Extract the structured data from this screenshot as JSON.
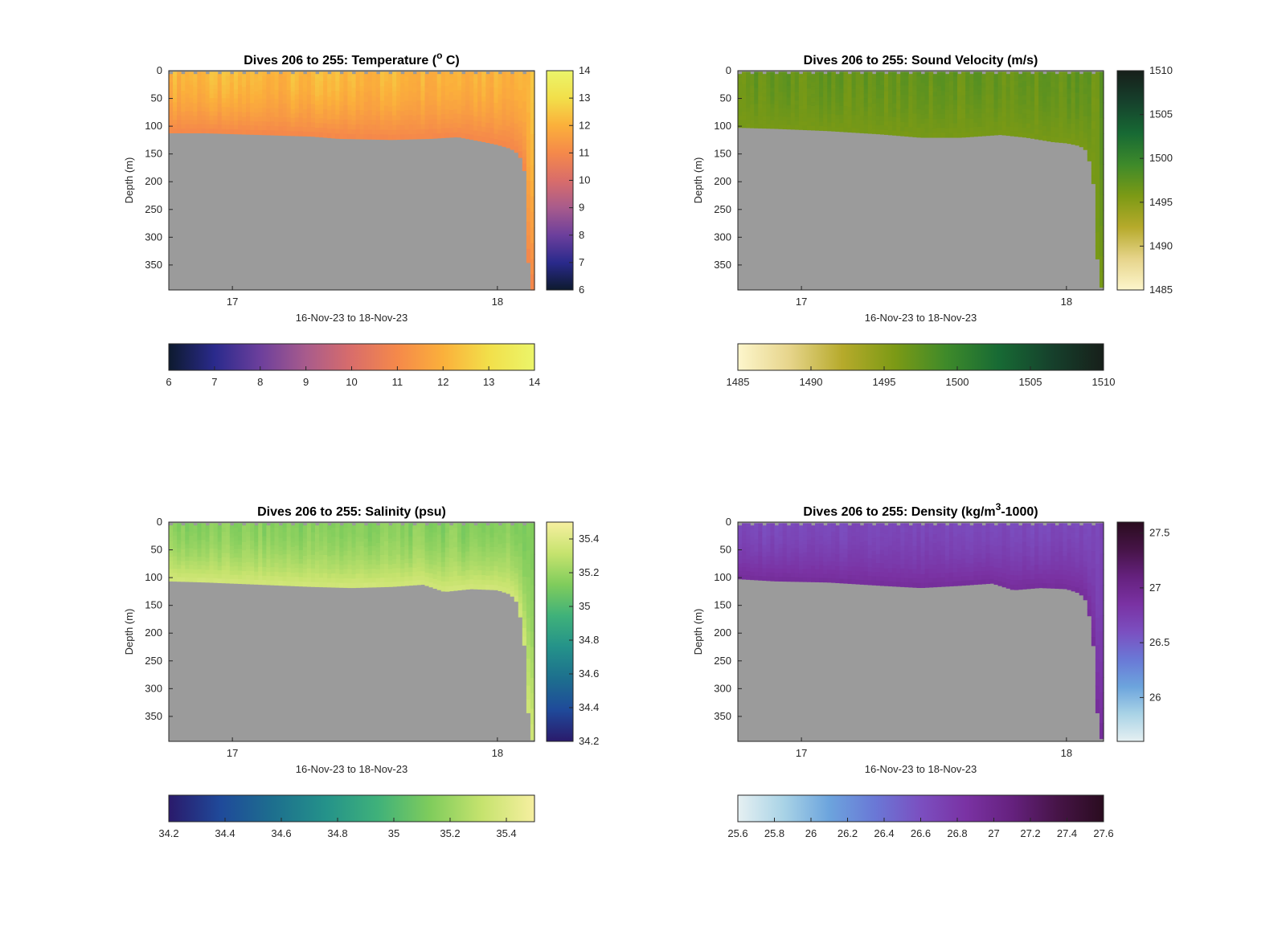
{
  "chart_data": [
    {
      "type": "heatmap",
      "title": "Dives 206 to 255: Temperature (",
      "title_degree": "o",
      "title_end": " C)",
      "xlabel": "16-Nov-23 to 18-Nov-23",
      "ylabel": "Depth (m)",
      "x_ticks": [
        "17",
        "18"
      ],
      "x_tick_values": [
        17,
        18
      ],
      "xlim": [
        16.76,
        18.14
      ],
      "ylim": [
        0,
        395
      ],
      "y_reversed": true,
      "y_ticks": [
        "0",
        "50",
        "100",
        "150",
        "200",
        "250",
        "300",
        "350"
      ],
      "y_tick_values": [
        0,
        50,
        100,
        150,
        200,
        250,
        300,
        350
      ],
      "colorbar": {
        "limits": [
          6,
          14
        ],
        "ticks": [
          "6",
          "7",
          "8",
          "9",
          "10",
          "11",
          "12",
          "13",
          "14"
        ],
        "tick_values": [
          6,
          7,
          8,
          9,
          10,
          11,
          12,
          13,
          14
        ],
        "colors": [
          "#0d1a2e",
          "#2a2a8c",
          "#6c3f9c",
          "#a85b8c",
          "#d96d6a",
          "#f5894a",
          "#fbb03b",
          "#f2df4a",
          "#ebf56a"
        ]
      },
      "surface_value_range": [
        11.8,
        12.5
      ],
      "bottom_value": 11.0,
      "bottom_depth_profile": [
        [
          16.76,
          112
        ],
        [
          16.9,
          112
        ],
        [
          17.1,
          115
        ],
        [
          17.3,
          118
        ],
        [
          17.4,
          122
        ],
        [
          17.6,
          124
        ],
        [
          17.75,
          122
        ],
        [
          17.85,
          119
        ],
        [
          17.95,
          128
        ],
        [
          18.0,
          133
        ],
        [
          18.05,
          140
        ],
        [
          18.08,
          150
        ],
        [
          18.1,
          170
        ],
        [
          18.11,
          230
        ],
        [
          18.12,
          395
        ],
        [
          18.14,
          395
        ]
      ],
      "no_data_color": "#9b9b9b"
    },
    {
      "type": "heatmap",
      "title": "Dives 206 to 255: Sound Velocity (m/s)",
      "xlabel": "16-Nov-23 to 18-Nov-23",
      "ylabel": "Depth (m)",
      "x_ticks": [
        "17",
        "18"
      ],
      "x_tick_values": [
        17,
        18
      ],
      "xlim": [
        16.76,
        18.14
      ],
      "ylim": [
        0,
        395
      ],
      "y_reversed": true,
      "y_ticks": [
        "0",
        "50",
        "100",
        "150",
        "200",
        "250",
        "300",
        "350"
      ],
      "y_tick_values": [
        0,
        50,
        100,
        150,
        200,
        250,
        300,
        350
      ],
      "colorbar": {
        "limits": [
          1485,
          1510
        ],
        "ticks": [
          "1485",
          "1490",
          "1495",
          "1500",
          "1505",
          "1510"
        ],
        "tick_values": [
          1485,
          1490,
          1495,
          1500,
          1505,
          1510
        ],
        "colors": [
          "#fdf6cc",
          "#e6d48a",
          "#b6aa2b",
          "#7c9a15",
          "#3e8a2a",
          "#176a34",
          "#16412c",
          "#171f1a"
        ]
      },
      "surface_value_range": [
        1496,
        1498
      ],
      "bottom_value": 1496,
      "bottom_depth_profile": [
        [
          16.76,
          102
        ],
        [
          16.9,
          104
        ],
        [
          17.1,
          108
        ],
        [
          17.3,
          114
        ],
        [
          17.45,
          120
        ],
        [
          17.6,
          120
        ],
        [
          17.75,
          115
        ],
        [
          17.85,
          120
        ],
        [
          17.95,
          128
        ],
        [
          18.0,
          130
        ],
        [
          18.05,
          135
        ],
        [
          18.08,
          145
        ],
        [
          18.1,
          200
        ],
        [
          18.11,
          220
        ],
        [
          18.12,
          390
        ],
        [
          18.14,
          390
        ]
      ],
      "no_data_color": "#9b9b9b"
    },
    {
      "type": "heatmap",
      "title": "Dives 206 to 255: Salinity (psu)",
      "xlabel": "16-Nov-23 to 18-Nov-23",
      "ylabel": "Depth (m)",
      "x_ticks": [
        "17",
        "18"
      ],
      "x_tick_values": [
        17,
        18
      ],
      "xlim": [
        16.76,
        18.14
      ],
      "ylim": [
        0,
        395
      ],
      "y_reversed": true,
      "y_ticks": [
        "0",
        "50",
        "100",
        "150",
        "200",
        "250",
        "300",
        "350"
      ],
      "y_tick_values": [
        0,
        50,
        100,
        150,
        200,
        250,
        300,
        350
      ],
      "colorbar": {
        "limits": [
          34.2,
          35.5
        ],
        "ticks": [
          "34.2",
          "34.4",
          "34.6",
          "34.8",
          "35",
          "35.2",
          "35.4"
        ],
        "tick_values": [
          34.2,
          34.4,
          34.6,
          34.8,
          35.0,
          35.2,
          35.4
        ],
        "colors": [
          "#2a1a6b",
          "#1f4a9a",
          "#1d6f8e",
          "#24928a",
          "#3fb17a",
          "#7fcc5c",
          "#c6e36e",
          "#f6efa0"
        ]
      },
      "surface_value_range": [
        35.1,
        35.2
      ],
      "bottom_value": 35.35,
      "bottom_depth_profile": [
        [
          16.76,
          106
        ],
        [
          16.9,
          108
        ],
        [
          17.1,
          112
        ],
        [
          17.3,
          116
        ],
        [
          17.45,
          118
        ],
        [
          17.6,
          116
        ],
        [
          17.72,
          112
        ],
        [
          17.8,
          125
        ],
        [
          17.9,
          120
        ],
        [
          18.0,
          122
        ],
        [
          18.05,
          130
        ],
        [
          18.08,
          148
        ],
        [
          18.1,
          220
        ],
        [
          18.11,
          230
        ],
        [
          18.12,
          392
        ],
        [
          18.14,
          392
        ]
      ],
      "no_data_color": "#9b9b9b"
    },
    {
      "type": "heatmap",
      "title": "Dives 206 to 255: Density (kg/m",
      "title_sup": "3",
      "title_end": "-1000)",
      "xlabel": "16-Nov-23 to 18-Nov-23",
      "ylabel": "Depth (m)",
      "x_ticks": [
        "17",
        "18"
      ],
      "x_tick_values": [
        17,
        18
      ],
      "xlim": [
        16.76,
        18.14
      ],
      "ylim": [
        0,
        395
      ],
      "y_reversed": true,
      "y_ticks": [
        "0",
        "50",
        "100",
        "150",
        "200",
        "250",
        "300",
        "350"
      ],
      "y_tick_values": [
        0,
        50,
        100,
        150,
        200,
        250,
        300,
        350
      ],
      "colorbar": {
        "limits": [
          25.6,
          27.6
        ],
        "ticks": [
          "25.6",
          "25.8",
          "26",
          "26.2",
          "26.4",
          "26.6",
          "26.8",
          "27",
          "27.2",
          "27.4",
          "27.6"
        ],
        "tick_values": [
          25.6,
          25.8,
          26.0,
          26.2,
          26.4,
          26.6,
          26.8,
          27.0,
          27.2,
          27.4,
          27.6
        ],
        "side_ticks": [
          "26",
          "26.5",
          "27",
          "27.5"
        ],
        "side_tick_values": [
          26.0,
          26.5,
          27.0,
          27.5
        ],
        "colors": [
          "#e6f0f2",
          "#a9d3e6",
          "#6ca4dd",
          "#6a78d6",
          "#7b4fc0",
          "#7a32a3",
          "#65217e",
          "#461447",
          "#2a0c1f"
        ]
      },
      "surface_value_range": [
        26.6,
        26.7
      ],
      "bottom_value": 26.9,
      "bottom_depth_profile": [
        [
          16.76,
          102
        ],
        [
          16.9,
          106
        ],
        [
          17.1,
          108
        ],
        [
          17.3,
          114
        ],
        [
          17.45,
          118
        ],
        [
          17.6,
          114
        ],
        [
          17.72,
          110
        ],
        [
          17.8,
          122
        ],
        [
          17.9,
          118
        ],
        [
          18.0,
          120
        ],
        [
          18.05,
          128
        ],
        [
          18.08,
          145
        ],
        [
          18.1,
          220
        ],
        [
          18.11,
          235
        ],
        [
          18.12,
          390
        ],
        [
          18.14,
          390
        ]
      ],
      "no_data_color": "#9b9b9b"
    }
  ]
}
